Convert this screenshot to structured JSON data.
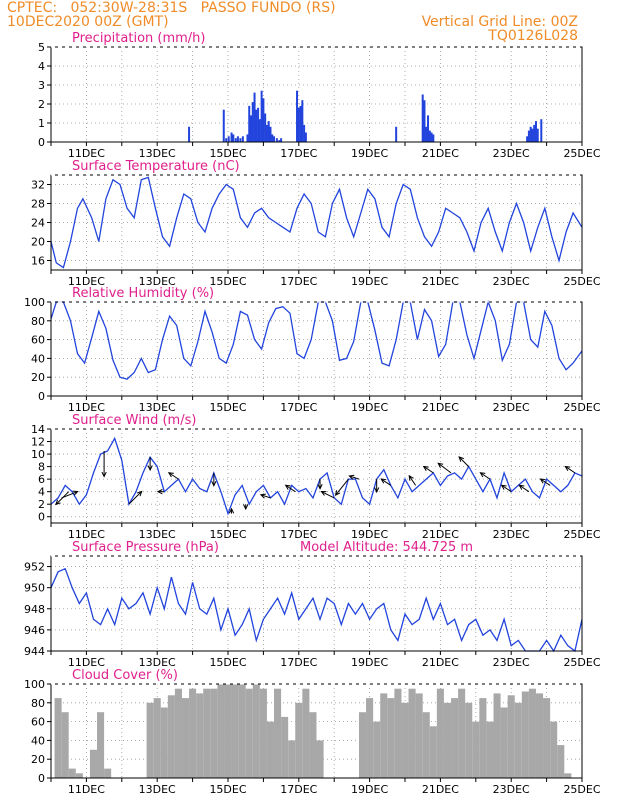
{
  "header": {
    "line1_left": "CPTEC:   052:30W-28:31S   PASSO FUNDO (RS)",
    "line2_left": "10DEC2020 00Z (GMT)",
    "line1_right": "Vertical Grid Line: 00Z",
    "line2_right": "TQ0126L028"
  },
  "colors": {
    "header": "#f08c28",
    "title": "#e0208c",
    "series": "#2244dd",
    "cloud": "#a8a8a8",
    "arrow": "#000000"
  },
  "chart_data": [
    {
      "type": "bar",
      "title": "Precipitation (mm/h)",
      "x_unit": "days since 10DEC2020 00Z",
      "xlim": [
        0,
        15
      ],
      "ylim": [
        0,
        5
      ],
      "yticks": [
        0,
        1,
        2,
        3,
        4,
        5
      ],
      "xtick_labels": [
        "11DEC",
        "13DEC",
        "15DEC",
        "17DEC",
        "19DEC",
        "21DEC",
        "23DEC",
        "25DEC"
      ],
      "xtick_positions": [
        1,
        3,
        5,
        7,
        9,
        11,
        13,
        15
      ],
      "x": [
        3.9,
        4.88,
        4.95,
        5.02,
        5.1,
        5.15,
        5.22,
        5.28,
        5.35,
        5.42,
        5.55,
        5.6,
        5.65,
        5.7,
        5.75,
        5.8,
        5.85,
        5.9,
        5.95,
        6.0,
        6.05,
        6.1,
        6.15,
        6.2,
        6.25,
        6.3,
        6.38,
        6.45,
        6.5,
        6.95,
        7.0,
        7.05,
        7.1,
        7.15,
        7.2,
        9.75,
        10.5,
        10.55,
        10.6,
        10.65,
        10.7,
        10.75,
        10.8,
        13.45,
        13.5,
        13.55,
        13.6,
        13.65,
        13.7,
        13.75,
        13.85
      ],
      "values": [
        0.8,
        1.7,
        0.2,
        0.3,
        0.5,
        0.4,
        0.2,
        0.3,
        0.2,
        0.3,
        0.4,
        1.9,
        1.4,
        2.1,
        2.6,
        1.7,
        1.8,
        1.2,
        2.7,
        2.3,
        1.5,
        0.9,
        1.1,
        0.8,
        0.4,
        0.3,
        0.2,
        0.1,
        0.2,
        2.7,
        1.8,
        1.9,
        2.2,
        0.9,
        0.5,
        0.8,
        2.5,
        2.2,
        0.8,
        1.4,
        0.6,
        0.5,
        0.4,
        0.3,
        0.6,
        0.8,
        0.7,
        0.9,
        1.1,
        0.7,
        1.2
      ]
    },
    {
      "type": "line",
      "title": "Surface Temperature (nC)",
      "x_unit": "days since 10DEC2020 00Z",
      "xlim": [
        0,
        15
      ],
      "ylim": [
        14,
        34
      ],
      "yticks": [
        16,
        20,
        24,
        28,
        32
      ],
      "xtick_labels": [
        "11DEC",
        "13DEC",
        "15DEC",
        "17DEC",
        "19DEC",
        "21DEC",
        "23DEC",
        "25DEC"
      ],
      "xtick_positions": [
        1,
        3,
        5,
        7,
        9,
        11,
        13,
        15
      ],
      "x": [
        0,
        0.15,
        0.35,
        0.55,
        0.75,
        0.9,
        1.15,
        1.35,
        1.55,
        1.75,
        1.95,
        2.15,
        2.35,
        2.55,
        2.75,
        2.95,
        3.15,
        3.35,
        3.55,
        3.75,
        3.95,
        4.15,
        4.35,
        4.55,
        4.75,
        4.95,
        5.15,
        5.35,
        5.55,
        5.75,
        5.95,
        6.15,
        6.35,
        6.55,
        6.75,
        6.95,
        7.15,
        7.35,
        7.55,
        7.75,
        7.95,
        8.15,
        8.35,
        8.55,
        8.75,
        8.95,
        9.15,
        9.35,
        9.55,
        9.75,
        9.95,
        10.15,
        10.35,
        10.55,
        10.75,
        10.95,
        11.15,
        11.35,
        11.55,
        11.75,
        11.95,
        12.15,
        12.35,
        12.55,
        12.75,
        12.95,
        13.15,
        13.35,
        13.55,
        13.75,
        13.95,
        14.15,
        14.35,
        14.55,
        14.75,
        15.0
      ],
      "values": [
        20,
        15.5,
        14.5,
        20,
        27,
        29,
        25,
        20,
        29,
        33,
        32,
        27,
        25,
        33,
        33.5,
        27,
        21,
        19,
        25,
        30,
        29,
        24,
        22,
        27,
        30,
        32,
        31,
        25,
        23,
        26,
        27,
        25,
        24,
        23,
        22,
        27,
        30,
        28,
        22,
        21,
        28,
        31,
        25,
        21,
        26,
        31,
        29,
        23,
        21,
        28,
        32,
        31,
        25,
        21,
        19,
        22,
        27,
        26,
        25,
        22,
        18,
        24,
        27,
        22,
        18,
        24,
        28,
        24,
        18,
        23,
        27,
        21,
        16,
        22,
        26,
        23
      ]
    },
    {
      "type": "line",
      "title": "Relative Humidity (%)",
      "x_unit": "days since 10DEC2020 00Z",
      "xlim": [
        0,
        15
      ],
      "ylim": [
        0,
        100
      ],
      "yticks": [
        0,
        20,
        40,
        60,
        80,
        100
      ],
      "xtick_labels": [
        "11DEC",
        "13DEC",
        "15DEC",
        "17DEC",
        "19DEC",
        "21DEC",
        "23DEC",
        "25DEC"
      ],
      "xtick_positions": [
        1,
        3,
        5,
        7,
        9,
        11,
        13,
        15
      ],
      "x": [
        0,
        0.15,
        0.35,
        0.55,
        0.75,
        0.95,
        1.15,
        1.35,
        1.55,
        1.75,
        1.95,
        2.15,
        2.35,
        2.55,
        2.75,
        2.95,
        3.15,
        3.35,
        3.55,
        3.75,
        3.95,
        4.15,
        4.35,
        4.55,
        4.75,
        4.95,
        5.15,
        5.35,
        5.55,
        5.75,
        5.95,
        6.15,
        6.35,
        6.55,
        6.75,
        6.95,
        7.15,
        7.35,
        7.55,
        7.75,
        7.95,
        8.15,
        8.35,
        8.55,
        8.75,
        8.95,
        9.15,
        9.35,
        9.55,
        9.75,
        9.95,
        10.15,
        10.35,
        10.55,
        10.75,
        10.95,
        11.15,
        11.35,
        11.55,
        11.75,
        11.95,
        12.15,
        12.35,
        12.55,
        12.75,
        12.95,
        13.15,
        13.35,
        13.55,
        13.75,
        13.95,
        14.15,
        14.35,
        14.55,
        14.75,
        15.0
      ],
      "values": [
        82,
        100,
        100,
        80,
        45,
        35,
        62,
        90,
        72,
        38,
        20,
        18,
        25,
        40,
        25,
        28,
        60,
        85,
        75,
        40,
        32,
        58,
        90,
        68,
        40,
        35,
        55,
        90,
        86,
        60,
        50,
        78,
        93,
        95,
        88,
        45,
        40,
        60,
        100,
        100,
        80,
        38,
        40,
        58,
        100,
        100,
        70,
        35,
        32,
        60,
        100,
        100,
        60,
        92,
        80,
        42,
        55,
        100,
        100,
        65,
        40,
        70,
        100,
        80,
        38,
        55,
        100,
        100,
        60,
        52,
        90,
        75,
        40,
        28,
        35,
        48
      ]
    },
    {
      "type": "line",
      "title": "Surface Wind (m/s)",
      "x_unit": "days since 10DEC2020 00Z",
      "xlim": [
        0,
        15
      ],
      "ylim": [
        -1,
        14
      ],
      "yticks": [
        0,
        2,
        4,
        6,
        8,
        10,
        12,
        14
      ],
      "xtick_labels": [
        "11DEC",
        "13DEC",
        "15DEC",
        "17DEC",
        "19DEC",
        "21DEC",
        "23DEC",
        "25DEC"
      ],
      "xtick_positions": [
        1,
        3,
        5,
        7,
        9,
        11,
        13,
        15
      ],
      "x": [
        0,
        0.2,
        0.4,
        0.6,
        0.8,
        1.0,
        1.2,
        1.4,
        1.6,
        1.8,
        2.0,
        2.2,
        2.4,
        2.6,
        2.8,
        3.0,
        3.2,
        3.4,
        3.6,
        3.8,
        4.0,
        4.2,
        4.4,
        4.6,
        4.8,
        5.0,
        5.2,
        5.4,
        5.6,
        5.8,
        6.0,
        6.2,
        6.4,
        6.6,
        6.8,
        7.0,
        7.2,
        7.4,
        7.6,
        7.8,
        8.0,
        8.2,
        8.4,
        8.6,
        8.8,
        9.0,
        9.2,
        9.4,
        9.6,
        9.8,
        10.0,
        10.2,
        10.4,
        10.6,
        10.8,
        11.0,
        11.2,
        11.4,
        11.6,
        11.8,
        12.0,
        12.2,
        12.4,
        12.6,
        12.8,
        13.0,
        13.2,
        13.4,
        13.6,
        13.8,
        14.0,
        14.2,
        14.4,
        14.6,
        14.8,
        15.0
      ],
      "values": [
        2,
        3,
        5,
        4,
        2,
        3.5,
        7,
        10,
        10.5,
        12.5,
        9,
        2,
        4,
        7,
        9.5,
        8,
        4,
        5,
        6,
        4,
        6,
        4.5,
        4,
        7,
        4,
        0.5,
        3.5,
        5,
        2,
        4,
        5,
        3,
        4,
        2,
        5,
        4,
        4.5,
        3,
        6,
        7,
        3,
        2,
        6,
        6,
        3,
        2,
        6,
        7.5,
        5,
        3,
        6,
        4,
        5,
        6,
        7,
        5,
        6.5,
        7,
        6,
        8,
        6,
        4,
        6,
        3,
        7,
        4,
        5,
        6,
        4,
        3,
        6,
        5,
        4,
        5,
        7,
        6.5
      ],
      "arrows": [
        {
          "x": 0.3,
          "u": 5,
          "v": 2
        },
        {
          "x": 0.5,
          "u": -4,
          "v": -4
        },
        {
          "x": 1.5,
          "u": 0,
          "v": -8
        },
        {
          "x": 2.2,
          "u": 4,
          "v": 4
        },
        {
          "x": 2.8,
          "u": 0,
          "v": -4
        },
        {
          "x": 3.2,
          "u": -2,
          "v": 0
        },
        {
          "x": 3.6,
          "u": -3,
          "v": 2
        },
        {
          "x": 4.6,
          "u": 0,
          "v": -4
        },
        {
          "x": 5.1,
          "u": 0,
          "v": 1.5
        },
        {
          "x": 5.5,
          "u": 0,
          "v": -1.5
        },
        {
          "x": 6.2,
          "u": -3,
          "v": 1
        },
        {
          "x": 6.9,
          "u": -3,
          "v": 2
        },
        {
          "x": 7.6,
          "u": 0,
          "v": -3
        },
        {
          "x": 8.0,
          "u": -4,
          "v": 2
        },
        {
          "x": 8.4,
          "u": -4,
          "v": -5
        },
        {
          "x": 8.7,
          "u": -3,
          "v": 1
        },
        {
          "x": 9.2,
          "u": 0,
          "v": -4
        },
        {
          "x": 9.6,
          "u": -3,
          "v": 2
        },
        {
          "x": 10.3,
          "u": -2,
          "v": 3
        },
        {
          "x": 10.8,
          "u": -3,
          "v": 2
        },
        {
          "x": 11.3,
          "u": -4,
          "v": 3
        },
        {
          "x": 11.8,
          "u": -3,
          "v": 3
        },
        {
          "x": 12.4,
          "u": -3,
          "v": 2
        },
        {
          "x": 13.0,
          "u": -3,
          "v": 2
        },
        {
          "x": 13.5,
          "u": -3,
          "v": 2
        },
        {
          "x": 14.1,
          "u": -3,
          "v": 2
        },
        {
          "x": 14.8,
          "u": -3,
          "v": 2
        }
      ]
    },
    {
      "type": "line",
      "title": "Surface Pressure (hPa)",
      "annotation": "Model Altitude: 544.725 m",
      "x_unit": "days since 10DEC2020 00Z",
      "xlim": [
        0,
        15
      ],
      "ylim": [
        944,
        953
      ],
      "yticks": [
        944,
        946,
        948,
        950,
        952
      ],
      "xtick_labels": [
        "11DEC",
        "13DEC",
        "15DEC",
        "17DEC",
        "19DEC",
        "21DEC",
        "23DEC",
        "25DEC"
      ],
      "xtick_positions": [
        1,
        3,
        5,
        7,
        9,
        11,
        13,
        15
      ],
      "x": [
        0,
        0.2,
        0.4,
        0.6,
        0.8,
        1.0,
        1.2,
        1.4,
        1.6,
        1.8,
        2.0,
        2.2,
        2.4,
        2.6,
        2.8,
        3.0,
        3.2,
        3.4,
        3.6,
        3.8,
        4.0,
        4.2,
        4.4,
        4.6,
        4.8,
        5.0,
        5.2,
        5.4,
        5.6,
        5.8,
        6.0,
        6.2,
        6.4,
        6.6,
        6.8,
        7.0,
        7.2,
        7.4,
        7.6,
        7.8,
        8.0,
        8.2,
        8.4,
        8.6,
        8.8,
        9.0,
        9.2,
        9.4,
        9.6,
        9.8,
        10.0,
        10.2,
        10.4,
        10.6,
        10.8,
        11.0,
        11.2,
        11.4,
        11.6,
        11.8,
        12.0,
        12.2,
        12.4,
        12.6,
        12.8,
        13.0,
        13.2,
        13.4,
        13.6,
        13.8,
        14.0,
        14.2,
        14.4,
        14.6,
        14.8,
        15.0
      ],
      "values": [
        950,
        951.5,
        951.8,
        950,
        948.5,
        949.5,
        947,
        946.5,
        948,
        946.5,
        949,
        948,
        948.5,
        949.5,
        947.5,
        950,
        948,
        951,
        948.5,
        947.5,
        950.5,
        948,
        947.5,
        949,
        946,
        948,
        945.5,
        946.5,
        948,
        945,
        947,
        948,
        949,
        947.5,
        949.5,
        947,
        948,
        949,
        947,
        949,
        948.5,
        946.5,
        948.5,
        947.5,
        948.5,
        947,
        948,
        948.5,
        946,
        945,
        947.5,
        946.5,
        947,
        949,
        947,
        948.5,
        946.5,
        947,
        945,
        946.5,
        947,
        945.5,
        946,
        945,
        947,
        944.5,
        945,
        944,
        943.5,
        944,
        945,
        943,
        945.5,
        944.5,
        943.5,
        947
      ]
    },
    {
      "type": "bar",
      "title": "Cloud Cover (%)",
      "x_unit": "days since 10DEC2020 00Z",
      "xlim": [
        0,
        15
      ],
      "ylim": [
        0,
        100
      ],
      "yticks": [
        0,
        20,
        40,
        60,
        80,
        100
      ],
      "xtick_labels": [
        "11DEC",
        "13DEC",
        "15DEC",
        "17DEC",
        "19DEC",
        "21DEC",
        "23DEC",
        "25DEC"
      ],
      "xtick_positions": [
        1,
        3,
        5,
        7,
        9,
        11,
        13,
        15
      ],
      "x": [
        0.2,
        0.4,
        0.6,
        0.8,
        1.0,
        1.2,
        1.4,
        1.6,
        1.8,
        2.0,
        2.2,
        2.4,
        2.6,
        2.8,
        3.0,
        3.2,
        3.4,
        3.6,
        3.8,
        4.0,
        4.2,
        4.4,
        4.6,
        4.8,
        5.0,
        5.2,
        5.4,
        5.6,
        5.8,
        6.0,
        6.2,
        6.4,
        6.6,
        6.8,
        7.0,
        7.2,
        7.4,
        7.6,
        7.8,
        8.0,
        8.2,
        8.4,
        8.6,
        8.8,
        9.0,
        9.2,
        9.4,
        9.6,
        9.8,
        10.0,
        10.2,
        10.4,
        10.6,
        10.8,
        11.0,
        11.2,
        11.4,
        11.6,
        11.8,
        12.0,
        12.2,
        12.4,
        12.6,
        12.8,
        13.0,
        13.2,
        13.4,
        13.6,
        13.8,
        14.0,
        14.2,
        14.4,
        14.6,
        14.8
      ],
      "values": [
        85,
        70,
        10,
        5,
        0,
        30,
        70,
        10,
        0,
        0,
        0,
        0,
        0,
        80,
        85,
        75,
        88,
        95,
        85,
        95,
        90,
        95,
        95,
        100,
        100,
        100,
        100,
        95,
        100,
        95,
        60,
        95,
        65,
        40,
        80,
        95,
        70,
        40,
        0,
        0,
        0,
        0,
        0,
        70,
        85,
        60,
        90,
        85,
        95,
        80,
        95,
        90,
        70,
        55,
        95,
        80,
        85,
        95,
        80,
        60,
        85,
        60,
        90,
        75,
        88,
        80,
        92,
        95,
        90,
        85,
        60,
        35,
        5,
        0
      ]
    }
  ]
}
